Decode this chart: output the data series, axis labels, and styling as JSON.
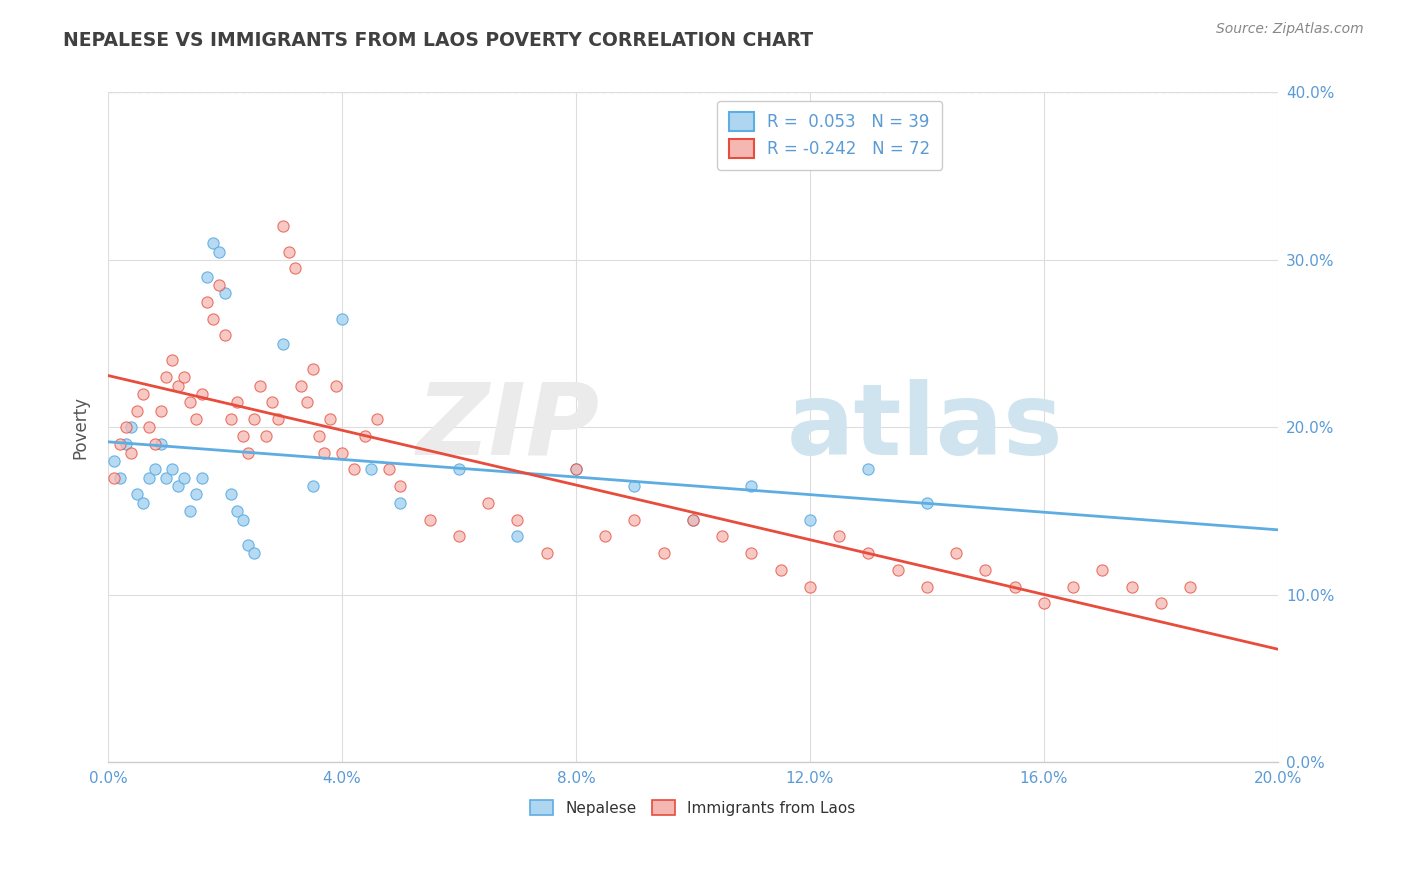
{
  "title": "NEPALESE VS IMMIGRANTS FROM LAOS POVERTY CORRELATION CHART",
  "source_text": "Source: ZipAtlas.com",
  "ylabel": "Poverty",
  "r_nepalese": 0.053,
  "n_nepalese": 39,
  "r_laos": -0.242,
  "n_laos": 72,
  "color_nepalese_fill": "#aed6f1",
  "color_nepalese_edge": "#5dade2",
  "color_laos_fill": "#f5b7b1",
  "color_laos_edge": "#e74c3c",
  "line_color_nepalese": "#5dade2",
  "line_color_laos": "#e74c3c",
  "nepalese_x": [
    0.001,
    0.002,
    0.003,
    0.004,
    0.005,
    0.006,
    0.007,
    0.008,
    0.009,
    0.01,
    0.011,
    0.012,
    0.013,
    0.014,
    0.015,
    0.016,
    0.017,
    0.018,
    0.019,
    0.02,
    0.021,
    0.022,
    0.023,
    0.024,
    0.025,
    0.03,
    0.035,
    0.04,
    0.045,
    0.05,
    0.06,
    0.07,
    0.08,
    0.09,
    0.1,
    0.11,
    0.12,
    0.13,
    0.14
  ],
  "nepalese_y": [
    0.18,
    0.17,
    0.19,
    0.2,
    0.16,
    0.155,
    0.17,
    0.175,
    0.19,
    0.17,
    0.175,
    0.165,
    0.17,
    0.15,
    0.16,
    0.17,
    0.29,
    0.31,
    0.305,
    0.28,
    0.16,
    0.15,
    0.145,
    0.13,
    0.125,
    0.25,
    0.165,
    0.265,
    0.175,
    0.155,
    0.175,
    0.135,
    0.175,
    0.165,
    0.145,
    0.165,
    0.145,
    0.175,
    0.155
  ],
  "laos_x": [
    0.001,
    0.002,
    0.003,
    0.004,
    0.005,
    0.006,
    0.007,
    0.008,
    0.009,
    0.01,
    0.011,
    0.012,
    0.013,
    0.014,
    0.015,
    0.016,
    0.017,
    0.018,
    0.019,
    0.02,
    0.021,
    0.022,
    0.023,
    0.024,
    0.025,
    0.026,
    0.027,
    0.028,
    0.029,
    0.03,
    0.031,
    0.032,
    0.033,
    0.034,
    0.035,
    0.036,
    0.037,
    0.038,
    0.039,
    0.04,
    0.042,
    0.044,
    0.046,
    0.048,
    0.05,
    0.055,
    0.06,
    0.065,
    0.07,
    0.075,
    0.08,
    0.085,
    0.09,
    0.095,
    0.1,
    0.105,
    0.11,
    0.115,
    0.12,
    0.125,
    0.13,
    0.135,
    0.14,
    0.145,
    0.15,
    0.155,
    0.16,
    0.165,
    0.17,
    0.175,
    0.18,
    0.185
  ],
  "laos_y": [
    0.17,
    0.19,
    0.2,
    0.185,
    0.21,
    0.22,
    0.2,
    0.19,
    0.21,
    0.23,
    0.24,
    0.225,
    0.23,
    0.215,
    0.205,
    0.22,
    0.275,
    0.265,
    0.285,
    0.255,
    0.205,
    0.215,
    0.195,
    0.185,
    0.205,
    0.225,
    0.195,
    0.215,
    0.205,
    0.32,
    0.305,
    0.295,
    0.225,
    0.215,
    0.235,
    0.195,
    0.185,
    0.205,
    0.225,
    0.185,
    0.175,
    0.195,
    0.205,
    0.175,
    0.165,
    0.145,
    0.135,
    0.155,
    0.145,
    0.125,
    0.175,
    0.135,
    0.145,
    0.125,
    0.145,
    0.135,
    0.125,
    0.115,
    0.105,
    0.135,
    0.125,
    0.115,
    0.105,
    0.125,
    0.115,
    0.105,
    0.095,
    0.105,
    0.115,
    0.105,
    0.095,
    0.105
  ],
  "xmin": 0.0,
  "xmax": 0.2,
  "ymin": 0.0,
  "ymax": 0.4,
  "yticks": [
    0.0,
    0.1,
    0.2,
    0.3,
    0.4
  ],
  "xticks": [
    0.0,
    0.04,
    0.08,
    0.12,
    0.16,
    0.2
  ],
  "background_color": "#ffffff",
  "grid_color": "#dddddd",
  "tick_color": "#5b9bd5",
  "title_color": "#404040",
  "source_color": "#888888",
  "legend_text_color": "#5b9bd5"
}
